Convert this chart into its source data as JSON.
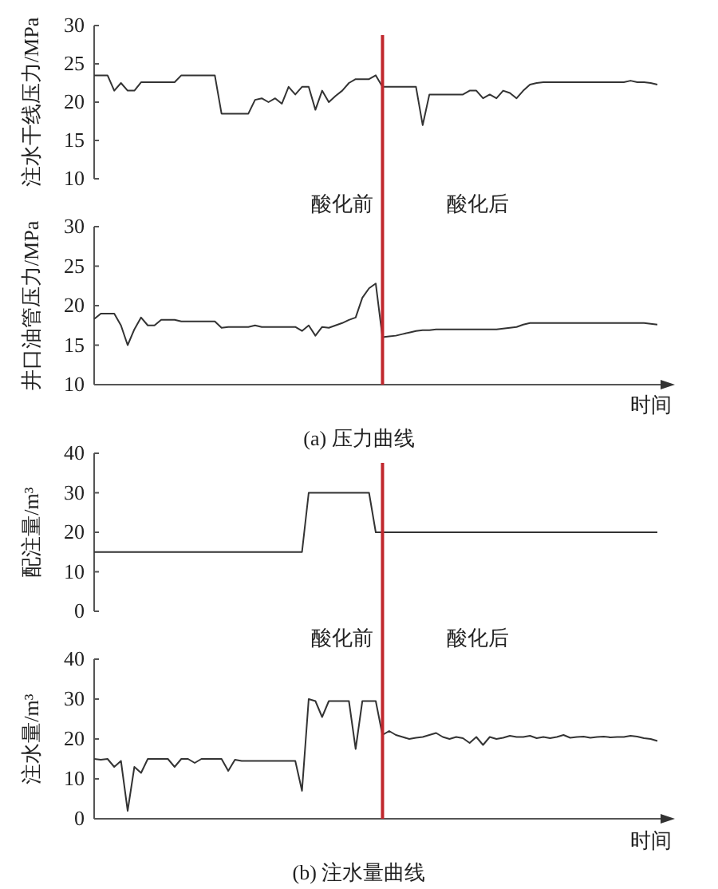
{
  "chart_data": [
    {
      "type": "line",
      "ylabel": "注水干线压力/MPa",
      "ylim": [
        10,
        30
      ],
      "yticks": [
        10,
        15,
        20,
        25,
        30
      ],
      "tick_labels": "y",
      "categories": [
        null,
        null,
        null,
        null,
        null,
        null,
        null,
        null,
        null,
        null,
        null,
        null,
        null,
        null,
        null,
        null,
        null,
        null,
        null,
        null,
        null,
        null,
        null,
        null,
        null,
        null,
        null,
        null,
        null,
        null,
        null,
        null,
        null,
        null,
        null,
        null,
        null,
        null,
        null,
        null,
        null,
        null,
        null,
        null,
        null,
        null,
        null,
        null,
        null,
        null,
        null,
        null,
        null,
        null,
        null,
        null,
        null,
        null,
        null,
        null,
        null,
        null,
        null,
        null,
        null,
        null,
        null,
        null,
        null,
        null,
        null,
        null,
        null,
        null,
        null,
        null,
        null,
        null,
        null,
        null,
        null,
        null,
        null,
        null,
        null
      ],
      "series": [
        {
          "color": "#333333",
          "values": [
            23.5,
            23.5,
            23.5,
            21.5,
            22.5,
            21.5,
            21.5,
            22.6,
            22.6,
            22.6,
            22.6,
            22.6,
            22.6,
            23.5,
            23.5,
            23.5,
            23.5,
            23.5,
            23.5,
            18.5,
            18.5,
            18.5,
            18.5,
            18.5,
            20.3,
            20.5,
            20,
            20.5,
            19.8,
            22,
            21,
            22,
            22,
            19,
            21.5,
            20,
            20.8,
            21.5,
            22.5,
            23,
            23,
            23,
            23.5,
            22,
            22,
            22,
            22,
            22,
            22,
            17,
            21,
            21,
            21,
            21,
            21,
            21,
            21.5,
            21.5,
            20.5,
            21,
            20.5,
            21.5,
            21.2,
            20.5,
            21.5,
            22.3,
            22.5,
            22.6,
            22.6,
            22.6,
            22.6,
            22.6,
            22.6,
            22.6,
            22.6,
            22.6,
            22.6,
            22.6,
            22.6,
            22.6,
            22.8,
            22.6,
            22.6,
            22.5,
            22.3
          ]
        }
      ]
    },
    {
      "type": "line",
      "ylabel": "井口油管压力/MPa",
      "xlabel": "时间",
      "ylim": [
        10,
        30
      ],
      "yticks": [
        10,
        15,
        20,
        25,
        30
      ],
      "tick_labels": "y",
      "annotations": [
        "酸化前",
        "酸化后",
        "(a) 压力曲线"
      ],
      "categories": [
        null,
        null,
        null,
        null,
        null,
        null,
        null,
        null,
        null,
        null,
        null,
        null,
        null,
        null,
        null,
        null,
        null,
        null,
        null,
        null,
        null,
        null,
        null,
        null,
        null,
        null,
        null,
        null,
        null,
        null,
        null,
        null,
        null,
        null,
        null,
        null,
        null,
        null,
        null,
        null,
        null,
        null,
        null,
        null,
        null,
        null,
        null,
        null,
        null,
        null,
        null,
        null,
        null,
        null,
        null,
        null,
        null,
        null,
        null,
        null,
        null,
        null,
        null,
        null,
        null,
        null,
        null,
        null,
        null,
        null,
        null,
        null,
        null,
        null,
        null,
        null,
        null,
        null,
        null,
        null,
        null,
        null,
        null,
        null,
        null
      ],
      "series": [
        {
          "color": "#333333",
          "values": [
            18.3,
            19,
            19,
            19,
            17.5,
            15,
            17,
            18.5,
            17.5,
            17.5,
            18.2,
            18.2,
            18.2,
            18,
            18,
            18,
            18,
            18,
            18,
            17.2,
            17.3,
            17.3,
            17.3,
            17.3,
            17.5,
            17.3,
            17.3,
            17.3,
            17.3,
            17.3,
            17.3,
            16.8,
            17.5,
            16.2,
            17.3,
            17.2,
            17.5,
            17.8,
            18.2,
            18.5,
            21,
            22.2,
            22.8,
            16,
            16.1,
            16.2,
            16.4,
            16.6,
            16.8,
            16.9,
            16.9,
            17,
            17,
            17,
            17,
            17,
            17,
            17,
            17,
            17,
            17,
            17.1,
            17.2,
            17.3,
            17.6,
            17.8,
            17.8,
            17.8,
            17.8,
            17.8,
            17.8,
            17.8,
            17.8,
            17.8,
            17.8,
            17.8,
            17.8,
            17.8,
            17.8,
            17.8,
            17.8,
            17.8,
            17.8,
            17.7,
            17.6
          ]
        }
      ]
    },
    {
      "type": "line",
      "ylabel": "配注量/m³",
      "ylim": [
        0,
        40
      ],
      "yticks": [
        0,
        10,
        20,
        30,
        40
      ],
      "tick_labels": "y",
      "categories": [
        null,
        null,
        null,
        null,
        null,
        null,
        null,
        null,
        null,
        null,
        null,
        null,
        null,
        null,
        null,
        null,
        null,
        null,
        null,
        null,
        null,
        null,
        null,
        null,
        null,
        null,
        null,
        null,
        null,
        null,
        null,
        null,
        null,
        null,
        null,
        null,
        null,
        null,
        null,
        null,
        null,
        null,
        null,
        null,
        null,
        null,
        null,
        null,
        null,
        null,
        null,
        null,
        null,
        null,
        null,
        null,
        null,
        null,
        null,
        null,
        null,
        null,
        null,
        null,
        null,
        null,
        null,
        null,
        null,
        null,
        null,
        null,
        null,
        null,
        null,
        null,
        null,
        null,
        null,
        null,
        null,
        null,
        null,
        null,
        null
      ],
      "series": [
        {
          "color": "#333333",
          "values": [
            15,
            15,
            15,
            15,
            15,
            15,
            15,
            15,
            15,
            15,
            15,
            15,
            15,
            15,
            15,
            15,
            15,
            15,
            15,
            15,
            15,
            15,
            15,
            15,
            15,
            15,
            15,
            15,
            15,
            15,
            15,
            15,
            30,
            30,
            30,
            30,
            30,
            30,
            30,
            30,
            30,
            30,
            20,
            20,
            20,
            20,
            20,
            20,
            20,
            20,
            20,
            20,
            20,
            20,
            20,
            20,
            20,
            20,
            20,
            20,
            20,
            20,
            20,
            20,
            20,
            20,
            20,
            20,
            20,
            20,
            20,
            20,
            20,
            20,
            20,
            20,
            20,
            20,
            20,
            20,
            20,
            20,
            20,
            20,
            20
          ]
        }
      ]
    },
    {
      "type": "line",
      "ylabel": "注水量/m³",
      "xlabel": "时间",
      "ylim": [
        0,
        40
      ],
      "yticks": [
        0,
        10,
        20,
        30,
        40
      ],
      "tick_labels": "y",
      "annotations": [
        "酸化前",
        "酸化后",
        "(b) 注水量曲线"
      ],
      "categories": [
        null,
        null,
        null,
        null,
        null,
        null,
        null,
        null,
        null,
        null,
        null,
        null,
        null,
        null,
        null,
        null,
        null,
        null,
        null,
        null,
        null,
        null,
        null,
        null,
        null,
        null,
        null,
        null,
        null,
        null,
        null,
        null,
        null,
        null,
        null,
        null,
        null,
        null,
        null,
        null,
        null,
        null,
        null,
        null,
        null,
        null,
        null,
        null,
        null,
        null,
        null,
        null,
        null,
        null,
        null,
        null,
        null,
        null,
        null,
        null,
        null,
        null,
        null,
        null,
        null,
        null,
        null,
        null,
        null,
        null,
        null,
        null,
        null,
        null,
        null,
        null,
        null,
        null,
        null,
        null,
        null,
        null,
        null,
        null,
        null
      ],
      "series": [
        {
          "color": "#333333",
          "values": [
            15,
            14.8,
            15,
            13,
            14.5,
            2,
            13,
            11.5,
            15,
            15,
            15,
            15,
            13,
            15,
            15,
            14,
            15,
            15,
            15,
            15,
            12,
            14.8,
            14.5,
            14.5,
            14.5,
            14.5,
            14.5,
            14.5,
            14.5,
            14.5,
            14.5,
            7,
            30,
            29.5,
            25.5,
            29.5,
            29.5,
            29.5,
            29.5,
            17.5,
            29.5,
            29.5,
            29.5,
            21,
            22,
            21,
            20.5,
            20,
            20.3,
            20.5,
            21,
            21.5,
            20.5,
            20,
            20.5,
            20.2,
            19,
            20.5,
            18.5,
            20.5,
            20,
            20.3,
            20.8,
            20.5,
            20.5,
            20.8,
            20.2,
            20.5,
            20.2,
            20.5,
            21,
            20.3,
            20.5,
            20.6,
            20.3,
            20.5,
            20.6,
            20.4,
            20.5,
            20.5,
            20.8,
            20.6,
            20.2,
            20,
            19.5
          ]
        }
      ]
    }
  ]
}
